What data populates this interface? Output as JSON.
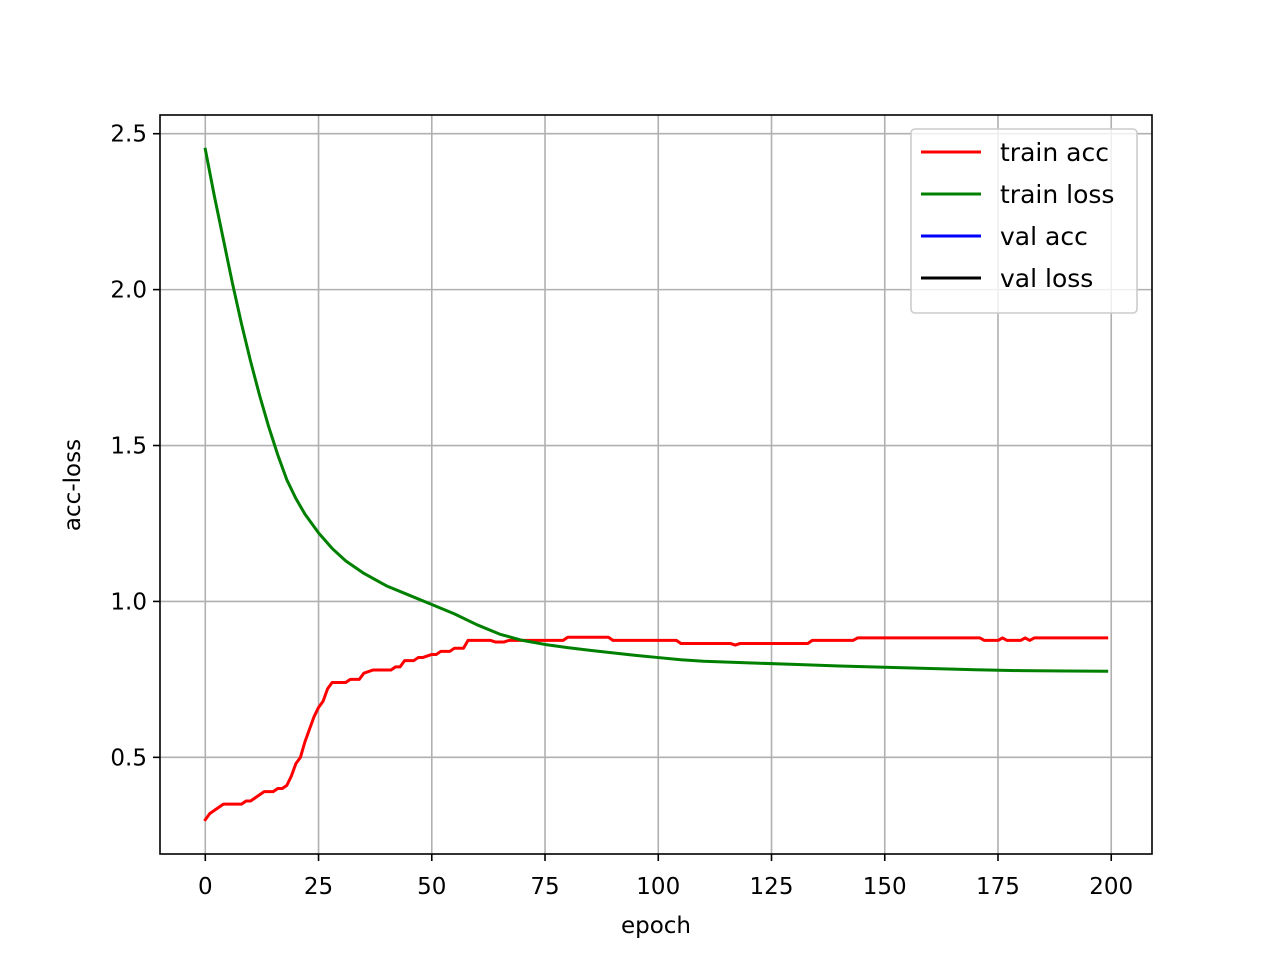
{
  "chart_data": {
    "type": "line",
    "title": "",
    "xlabel": "epoch",
    "ylabel": "acc-loss",
    "xlim": [
      -10,
      209
    ],
    "ylim": [
      0.19,
      2.56
    ],
    "xticks": [
      0,
      25,
      50,
      75,
      100,
      125,
      150,
      175,
      200
    ],
    "yticks": [
      0.5,
      1.0,
      1.5,
      2.0,
      2.5
    ],
    "xtick_labels": [
      "0",
      "25",
      "50",
      "75",
      "100",
      "125",
      "150",
      "175",
      "200"
    ],
    "ytick_labels": [
      "0.5",
      "1.0",
      "1.5",
      "2.0",
      "2.5"
    ],
    "grid": true,
    "legend_position": "top-right",
    "series": [
      {
        "name": "train acc",
        "color": "#ff0000",
        "points": [
          [
            0,
            0.3
          ],
          [
            1,
            0.32
          ],
          [
            2,
            0.33
          ],
          [
            3,
            0.34
          ],
          [
            4,
            0.35
          ],
          [
            8,
            0.35
          ],
          [
            9,
            0.36
          ],
          [
            10,
            0.36
          ],
          [
            11,
            0.37
          ],
          [
            12,
            0.38
          ],
          [
            13,
            0.39
          ],
          [
            15,
            0.39
          ],
          [
            16,
            0.4
          ],
          [
            17,
            0.4
          ],
          [
            18,
            0.41
          ],
          [
            19,
            0.44
          ],
          [
            20,
            0.48
          ],
          [
            21,
            0.5
          ],
          [
            22,
            0.55
          ],
          [
            23,
            0.59
          ],
          [
            24,
            0.63
          ],
          [
            25,
            0.66
          ],
          [
            26,
            0.68
          ],
          [
            27,
            0.72
          ],
          [
            28,
            0.74
          ],
          [
            29,
            0.74
          ],
          [
            31,
            0.74
          ],
          [
            32,
            0.75
          ],
          [
            34,
            0.75
          ],
          [
            35,
            0.77
          ],
          [
            37,
            0.78
          ],
          [
            41,
            0.78
          ],
          [
            42,
            0.79
          ],
          [
            43,
            0.79
          ],
          [
            44,
            0.81
          ],
          [
            46,
            0.81
          ],
          [
            47,
            0.82
          ],
          [
            48,
            0.82
          ],
          [
            50,
            0.83
          ],
          [
            51,
            0.83
          ],
          [
            52,
            0.84
          ],
          [
            54,
            0.84
          ],
          [
            55,
            0.85
          ],
          [
            57,
            0.85
          ],
          [
            58,
            0.875
          ],
          [
            63,
            0.875
          ],
          [
            64,
            0.87
          ],
          [
            66,
            0.87
          ],
          [
            67,
            0.875
          ],
          [
            79,
            0.875
          ],
          [
            80,
            0.885
          ],
          [
            89,
            0.885
          ],
          [
            90,
            0.875
          ],
          [
            104,
            0.875
          ],
          [
            105,
            0.865
          ],
          [
            116,
            0.865
          ],
          [
            117,
            0.86
          ],
          [
            118,
            0.865
          ],
          [
            133,
            0.865
          ],
          [
            134,
            0.875
          ],
          [
            143,
            0.875
          ],
          [
            144,
            0.883
          ],
          [
            171,
            0.883
          ],
          [
            172,
            0.875
          ],
          [
            175,
            0.875
          ],
          [
            176,
            0.883
          ],
          [
            177,
            0.875
          ],
          [
            180,
            0.875
          ],
          [
            181,
            0.883
          ],
          [
            182,
            0.875
          ],
          [
            183,
            0.883
          ],
          [
            199,
            0.883
          ]
        ]
      },
      {
        "name": "train loss",
        "color": "#008000",
        "points": [
          [
            0,
            2.45
          ],
          [
            2,
            2.3
          ],
          [
            4,
            2.16
          ],
          [
            6,
            2.02
          ],
          [
            8,
            1.89
          ],
          [
            10,
            1.77
          ],
          [
            12,
            1.66
          ],
          [
            14,
            1.56
          ],
          [
            16,
            1.47
          ],
          [
            18,
            1.39
          ],
          [
            20,
            1.33
          ],
          [
            22,
            1.28
          ],
          [
            25,
            1.22
          ],
          [
            28,
            1.17
          ],
          [
            31,
            1.13
          ],
          [
            35,
            1.09
          ],
          [
            40,
            1.05
          ],
          [
            45,
            1.02
          ],
          [
            50,
            0.99
          ],
          [
            55,
            0.96
          ],
          [
            60,
            0.925
          ],
          [
            65,
            0.895
          ],
          [
            70,
            0.875
          ],
          [
            75,
            0.862
          ],
          [
            80,
            0.852
          ],
          [
            85,
            0.843
          ],
          [
            90,
            0.835
          ],
          [
            95,
            0.827
          ],
          [
            100,
            0.82
          ],
          [
            105,
            0.813
          ],
          [
            110,
            0.808
          ],
          [
            120,
            0.803
          ],
          [
            130,
            0.798
          ],
          [
            140,
            0.793
          ],
          [
            150,
            0.789
          ],
          [
            160,
            0.785
          ],
          [
            170,
            0.781
          ],
          [
            180,
            0.778
          ],
          [
            190,
            0.777
          ],
          [
            199,
            0.776
          ]
        ]
      },
      {
        "name": "val acc",
        "color": "#0000ff",
        "points": []
      },
      {
        "name": "val loss",
        "color": "#000000",
        "points": []
      }
    ]
  }
}
